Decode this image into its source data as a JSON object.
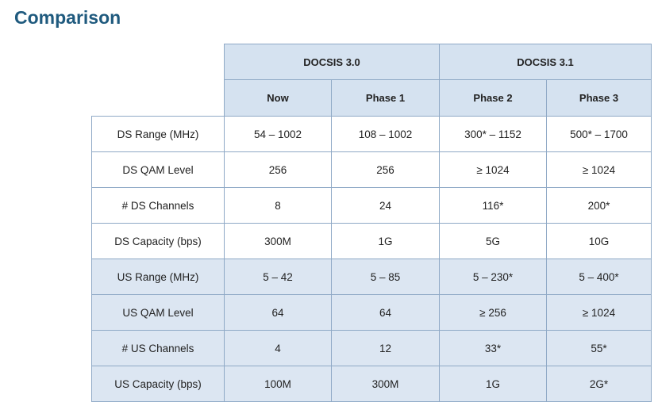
{
  "title": "Comparison",
  "table": {
    "groups": [
      "DOCSIS 3.0",
      "DOCSIS 3.1"
    ],
    "columns": [
      "Now",
      "Phase 1",
      "Phase 2",
      "Phase 3"
    ],
    "rows": [
      [
        "DS Range (MHz)",
        "54 – 1002",
        "108 – 1002",
        "300* – 1152",
        "500* – 1700"
      ],
      [
        "DS QAM Level",
        "256",
        "256",
        "≥ 1024",
        "≥ 1024"
      ],
      [
        "# DS Channels",
        "8",
        "24",
        "116*",
        "200*"
      ],
      [
        "DS Capacity (bps)",
        "300M",
        "1G",
        "5G",
        "10G"
      ],
      [
        "US Range (MHz)",
        "5 – 42",
        "5 – 85",
        "5 – 230*",
        "5 – 400*"
      ],
      [
        "US QAM Level",
        "64",
        "64",
        "≥ 256",
        "≥ 1024"
      ],
      [
        "# US Channels",
        "4",
        "12",
        "33*",
        "55*"
      ],
      [
        "US Capacity (bps)",
        "100M",
        "300M",
        "1G",
        "2G*"
      ]
    ]
  }
}
